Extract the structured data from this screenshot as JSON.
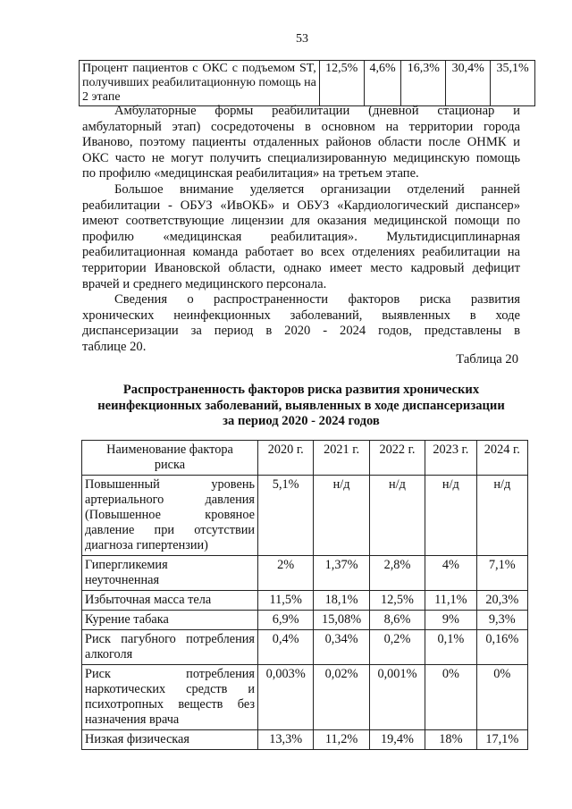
{
  "page_number": "53",
  "top_table": {
    "row": {
      "label_lines": [
        "Процент пациентов с ОКС с подъемом ST,",
        "получивших реабилитационную помощь на",
        "2 этапе"
      ],
      "values": [
        "12,5%",
        "4,6%",
        "16,3%",
        "30,4%",
        "35,1%"
      ]
    }
  },
  "paragraphs": [
    [
      "Амбулаторные формы реабилитации (дневной стационар и",
      "амбулаторный этап) сосредоточены в основном на территории города",
      "Иваново, поэтому пациенты отдаленных районов области после ОНМК и",
      "ОКС часто не могут получить специализированную медицинскую помощь",
      "по профилю «медицинская реабилитация» на третьем этапе."
    ],
    [
      "Большое внимание уделяется организации отделений ранней",
      "реабилитации - ОБУЗ «ИвОКБ» и ОБУЗ «Кардиологический диспансер»",
      "имеют соответствующие лицензии для оказания медицинской помощи по",
      "профилю «медицинская реабилитация». Мультидисциплинарная",
      "реабилитационная команда работает во всех отделениях реабилитации на",
      "территории Ивановской области, однако имеет место кадровый дефицит",
      "врачей и среднего медицинского персонала."
    ],
    [
      "Сведения о распространенности факторов риска развития",
      "хронических неинфекционных заболеваний, выявленных в ходе",
      "диспансеризации за период в 2020 - 2024 годов, представлены в",
      "таблице 20."
    ]
  ],
  "table_label": "Таблица 20",
  "table_title": [
    "Распространенность факторов риска развития хронических",
    "неинфекционных заболеваний, выявленных в ходе диспансеризации",
    "за период 2020 - 2024 годов"
  ],
  "table": {
    "header": {
      "factor": [
        "Наименование фактора",
        "риска"
      ],
      "years": [
        "2020 г.",
        "2021 г.",
        "2022 г.",
        "2023 г.",
        "2024 г."
      ]
    },
    "rows": [
      {
        "label": [
          "Повышенный уровень",
          "артериального давления",
          "(Повышенное кровяное",
          "давление при отсутствии",
          "диагноза гипертензии)"
        ],
        "values": [
          "5,1%",
          "н/д",
          "н/д",
          "н/д",
          "н/д"
        ]
      },
      {
        "label": [
          "Гипергликемия",
          "неуточненная"
        ],
        "values": [
          "2%",
          "1,37%",
          "2,8%",
          "4%",
          "7,1%"
        ]
      },
      {
        "label": [
          "Избыточная масса тела"
        ],
        "values": [
          "11,5%",
          "18,1%",
          "12,5%",
          "11,1%",
          "20,3%"
        ]
      },
      {
        "label": [
          "Курение табака"
        ],
        "values": [
          "6,9%",
          "15,08%",
          "8,6%",
          "9%",
          "9,3%"
        ]
      },
      {
        "label": [
          "Риск пагубного потребления",
          "алкоголя"
        ],
        "values": [
          "0,4%",
          "0,34%",
          "0,2%",
          "0,1%",
          "0,16%"
        ]
      },
      {
        "label": [
          "Риск потребления",
          "наркотических средств и",
          "психотропных веществ без",
          "назначения врача"
        ],
        "values": [
          "0,003%",
          "0,02%",
          "0,001%",
          "0%",
          "0%"
        ]
      },
      {
        "label": [
          "Низкая физическая"
        ],
        "values": [
          "13,3%",
          "11,2%",
          "19,4%",
          "18%",
          "17,1%"
        ]
      }
    ]
  }
}
